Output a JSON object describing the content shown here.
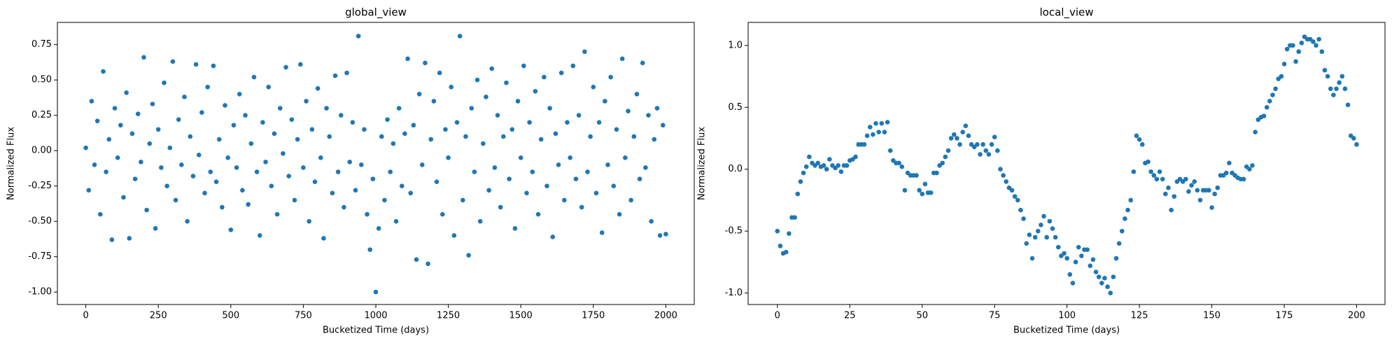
{
  "chart_data": [
    {
      "type": "scatter",
      "title": "global_view",
      "x_label": "Bucketized Time (days)",
      "y_label": "Normalized Flux",
      "xlim": [
        -98,
        2098
      ],
      "ylim": [
        -1.088,
        0.907
      ],
      "xticks": [
        0,
        250,
        500,
        750,
        1000,
        1250,
        1500,
        1750,
        2000
      ],
      "yticks": [
        {
          "value": -1,
          "label": "-1.00"
        },
        -0.75,
        {
          "value": -0.5,
          "label": "-0.50"
        },
        -0.25,
        {
          "value": 0,
          "label": "0.00"
        },
        0.25,
        {
          "value": 0.5,
          "label": "0.50"
        },
        0.75
      ],
      "x": [
        0,
        10,
        20,
        30,
        40,
        50,
        60,
        70,
        80,
        90,
        100,
        110,
        120,
        130,
        140,
        150,
        160,
        170,
        180,
        190,
        200,
        210,
        220,
        230,
        240,
        250,
        260,
        270,
        280,
        290,
        300,
        310,
        320,
        330,
        340,
        350,
        360,
        370,
        380,
        390,
        400,
        410,
        420,
        430,
        440,
        450,
        460,
        470,
        480,
        490,
        500,
        510,
        520,
        530,
        540,
        550,
        560,
        570,
        580,
        590,
        600,
        610,
        620,
        630,
        640,
        650,
        660,
        670,
        680,
        690,
        700,
        710,
        720,
        730,
        740,
        750,
        760,
        770,
        780,
        790,
        800,
        810,
        820,
        830,
        840,
        850,
        860,
        870,
        880,
        890,
        900,
        910,
        920,
        930,
        940,
        950,
        960,
        970,
        980,
        990,
        1000,
        1010,
        1020,
        1030,
        1040,
        1050,
        1060,
        1070,
        1080,
        1090,
        1100,
        1110,
        1120,
        1130,
        1140,
        1150,
        1160,
        1170,
        1180,
        1190,
        1200,
        1210,
        1220,
        1230,
        1240,
        1250,
        1260,
        1270,
        1280,
        1290,
        1300,
        1310,
        1320,
        1330,
        1340,
        1350,
        1360,
        1370,
        1380,
        1390,
        1400,
        1410,
        1420,
        1430,
        1440,
        1450,
        1460,
        1470,
        1480,
        1490,
        1500,
        1510,
        1520,
        1530,
        1540,
        1550,
        1560,
        1570,
        1580,
        1590,
        1600,
        1610,
        1620,
        1630,
        1640,
        1650,
        1660,
        1670,
        1680,
        1690,
        1700,
        1710,
        1720,
        1730,
        1740,
        1750,
        1760,
        1770,
        1780,
        1790,
        1800,
        1810,
        1820,
        1830,
        1840,
        1850,
        1860,
        1870,
        1880,
        1890,
        1900,
        1910,
        1920,
        1930,
        1940,
        1950,
        1960,
        1970,
        1980,
        1990,
        2000
      ],
      "series": [
        {
          "color": "#1f77b4",
          "values": [
            0.02,
            -0.28,
            0.35,
            -0.1,
            0.21,
            -0.45,
            0.56,
            -0.15,
            0.08,
            -0.63,
            0.3,
            -0.05,
            0.18,
            -0.33,
            0.41,
            -0.62,
            0.12,
            -0.2,
            0.26,
            -0.08,
            0.66,
            -0.42,
            0.05,
            0.33,
            -0.55,
            0.15,
            -0.12,
            0.48,
            -0.25,
            0.02,
            0.63,
            -0.35,
            0.22,
            -0.1,
            0.38,
            -0.5,
            0.1,
            -0.18,
            0.61,
            -0.03,
            0.27,
            -0.3,
            0.45,
            -0.15,
            0.6,
            -0.22,
            0.08,
            -0.4,
            0.32,
            -0.05,
            -0.56,
            0.18,
            -0.12,
            0.4,
            -0.28,
            0.25,
            -0.38,
            0.05,
            0.52,
            -0.15,
            -0.6,
            0.2,
            -0.08,
            0.45,
            -0.25,
            0.12,
            -0.45,
            0.3,
            -0.02,
            0.59,
            -0.18,
            0.22,
            -0.35,
            0.08,
            0.61,
            -0.12,
            0.35,
            -0.5,
            0.15,
            -0.22,
            0.44,
            -0.05,
            -0.62,
            0.3,
            0.1,
            -0.3,
            0.53,
            -0.15,
            0.25,
            -0.4,
            0.55,
            -0.08,
            0.2,
            -0.28,
            0.81,
            -0.1,
            0.15,
            -0.45,
            -0.7,
            -0.2,
            -1.0,
            -0.55,
            0.1,
            -0.35,
            0.22,
            -0.15,
            0.05,
            -0.5,
            0.3,
            -0.25,
            0.12,
            0.65,
            -0.3,
            0.18,
            -0.77,
            0.4,
            -0.1,
            0.62,
            -0.8,
            0.08,
            0.35,
            -0.22,
            0.55,
            -0.45,
            0.15,
            -0.05,
            0.45,
            -0.6,
            0.2,
            0.81,
            -0.35,
            0.1,
            -0.74,
            0.3,
            -0.15,
            0.5,
            -0.5,
            0.05,
            0.38,
            -0.28,
            0.58,
            -0.12,
            0.25,
            -0.4,
            0.1,
            0.48,
            -0.2,
            0.15,
            -0.55,
            0.35,
            -0.05,
            0.6,
            -0.3,
            0.2,
            -0.15,
            0.42,
            -0.45,
            0.08,
            0.52,
            -0.25,
            0.3,
            -0.61,
            0.12,
            -0.1,
            0.55,
            -0.35,
            0.2,
            -0.05,
            0.6,
            -0.2,
            0.25,
            -0.4,
            0.7,
            -0.15,
            0.1,
            0.45,
            -0.3,
            0.2,
            -0.58,
            0.35,
            -0.1,
            0.52,
            -0.25,
            0.15,
            -0.45,
            0.65,
            -0.05,
            0.28,
            -0.35,
            0.1,
            0.4,
            -0.2,
            0.62,
            -0.12,
            0.25,
            -0.5,
            0.08,
            0.3,
            -0.6,
            0.18,
            -0.59
          ]
        }
      ]
    },
    {
      "type": "scatter",
      "title": "local_view",
      "x_label": "Bucketized Time (days)",
      "y_label": "Normalized Flux",
      "xlim": [
        -10.1,
        209.8
      ],
      "ylim": [
        -1.093,
        1.186
      ],
      "xticks": [
        0,
        25,
        50,
        75,
        100,
        125,
        150,
        175,
        200
      ],
      "yticks": [
        {
          "value": -1,
          "label": "-1.0"
        },
        -0.5,
        {
          "value": 0,
          "label": "0.0"
        },
        0.5,
        {
          "value": 1,
          "label": "1.0"
        }
      ],
      "x": [
        0,
        1,
        2,
        3,
        4,
        5,
        6,
        7,
        8,
        9,
        10,
        11,
        12,
        13,
        14,
        15,
        16,
        17,
        18,
        19,
        20,
        21,
        22,
        23,
        24,
        25,
        26,
        27,
        28,
        29,
        30,
        31,
        32,
        33,
        34,
        35,
        36,
        37,
        38,
        39,
        40,
        41,
        42,
        43,
        44,
        45,
        46,
        47,
        48,
        49,
        50,
        51,
        52,
        53,
        54,
        55,
        56,
        57,
        58,
        59,
        60,
        61,
        62,
        63,
        64,
        65,
        66,
        67,
        68,
        69,
        70,
        71,
        72,
        73,
        74,
        75,
        76,
        77,
        78,
        79,
        80,
        81,
        82,
        83,
        84,
        85,
        86,
        87,
        88,
        89,
        90,
        91,
        92,
        93,
        94,
        95,
        96,
        97,
        98,
        99,
        100,
        101,
        102,
        103,
        104,
        105,
        106,
        107,
        108,
        109,
        110,
        111,
        112,
        113,
        114,
        115,
        116,
        117,
        118,
        119,
        120,
        121,
        122,
        123,
        124,
        125,
        126,
        127,
        128,
        129,
        130,
        131,
        132,
        133,
        134,
        135,
        136,
        137,
        138,
        139,
        140,
        141,
        142,
        143,
        144,
        145,
        146,
        147,
        148,
        149,
        150,
        151,
        152,
        153,
        154,
        155,
        156,
        157,
        158,
        159,
        160,
        161,
        162,
        163,
        164,
        165,
        166,
        167,
        168,
        169,
        170,
        171,
        172,
        173,
        174,
        175,
        176,
        177,
        178,
        179,
        180,
        181,
        182,
        183,
        184,
        185,
        186,
        187,
        188,
        189,
        190,
        191,
        192,
        193,
        194,
        195,
        196,
        197,
        198,
        199,
        200
      ],
      "series": [
        {
          "color": "#1f77b4",
          "values": [
            -0.5,
            -0.62,
            -0.68,
            -0.67,
            -0.52,
            -0.39,
            -0.39,
            -0.2,
            -0.1,
            -0.03,
            0.02,
            0.1,
            0.05,
            0.03,
            0.05,
            0.02,
            0.03,
            0.0,
            0.08,
            0.03,
            0.01,
            0.03,
            -0.02,
            0.03,
            0.03,
            0.07,
            0.08,
            0.1,
            0.2,
            0.2,
            0.2,
            0.27,
            0.34,
            0.28,
            0.37,
            0.3,
            0.37,
            0.3,
            0.38,
            0.15,
            0.07,
            0.05,
            0.05,
            0.02,
            -0.17,
            -0.03,
            -0.05,
            -0.05,
            -0.05,
            -0.17,
            -0.2,
            -0.12,
            -0.19,
            -0.19,
            -0.03,
            -0.03,
            0.03,
            0.05,
            0.1,
            0.15,
            0.25,
            0.28,
            0.25,
            0.2,
            0.3,
            0.35,
            0.27,
            0.2,
            0.18,
            0.2,
            0.12,
            0.2,
            0.15,
            0.12,
            0.2,
            0.26,
            0.15,
            0.0,
            -0.05,
            -0.1,
            -0.15,
            -0.17,
            -0.22,
            -0.25,
            -0.33,
            -0.4,
            -0.6,
            -0.53,
            -0.72,
            -0.55,
            -0.5,
            -0.45,
            -0.38,
            -0.55,
            -0.42,
            -0.48,
            -0.55,
            -0.63,
            -0.7,
            -0.68,
            -0.72,
            -0.85,
            -0.92,
            -0.75,
            -0.63,
            -0.7,
            -0.65,
            -0.65,
            -0.78,
            -0.73,
            -0.83,
            -0.87,
            -0.92,
            -0.88,
            -0.95,
            -1.0,
            -0.87,
            -0.72,
            -0.6,
            -0.5,
            -0.4,
            -0.33,
            -0.25,
            -0.02,
            0.27,
            0.24,
            0.2,
            0.05,
            0.06,
            -0.02,
            -0.05,
            -0.08,
            -0.02,
            -0.08,
            -0.2,
            -0.15,
            -0.33,
            -0.22,
            -0.1,
            -0.08,
            -0.1,
            -0.08,
            -0.18,
            -0.13,
            -0.1,
            -0.17,
            -0.25,
            -0.17,
            -0.17,
            -0.17,
            -0.31,
            -0.2,
            -0.15,
            -0.05,
            -0.05,
            -0.03,
            0.05,
            -0.03,
            -0.05,
            -0.07,
            -0.08,
            -0.08,
            0.02,
            0.0,
            0.03,
            0.3,
            0.4,
            0.42,
            0.43,
            0.5,
            0.55,
            0.6,
            0.65,
            0.73,
            0.75,
            0.85,
            0.97,
            1.0,
            1.0,
            0.87,
            0.95,
            1.02,
            1.07,
            1.05,
            1.05,
            1.03,
            1.0,
            1.05,
            0.95,
            0.8,
            0.75,
            0.65,
            0.6,
            0.65,
            0.7,
            0.75,
            0.65,
            0.52,
            0.27,
            0.25,
            0.2
          ]
        }
      ]
    }
  ]
}
